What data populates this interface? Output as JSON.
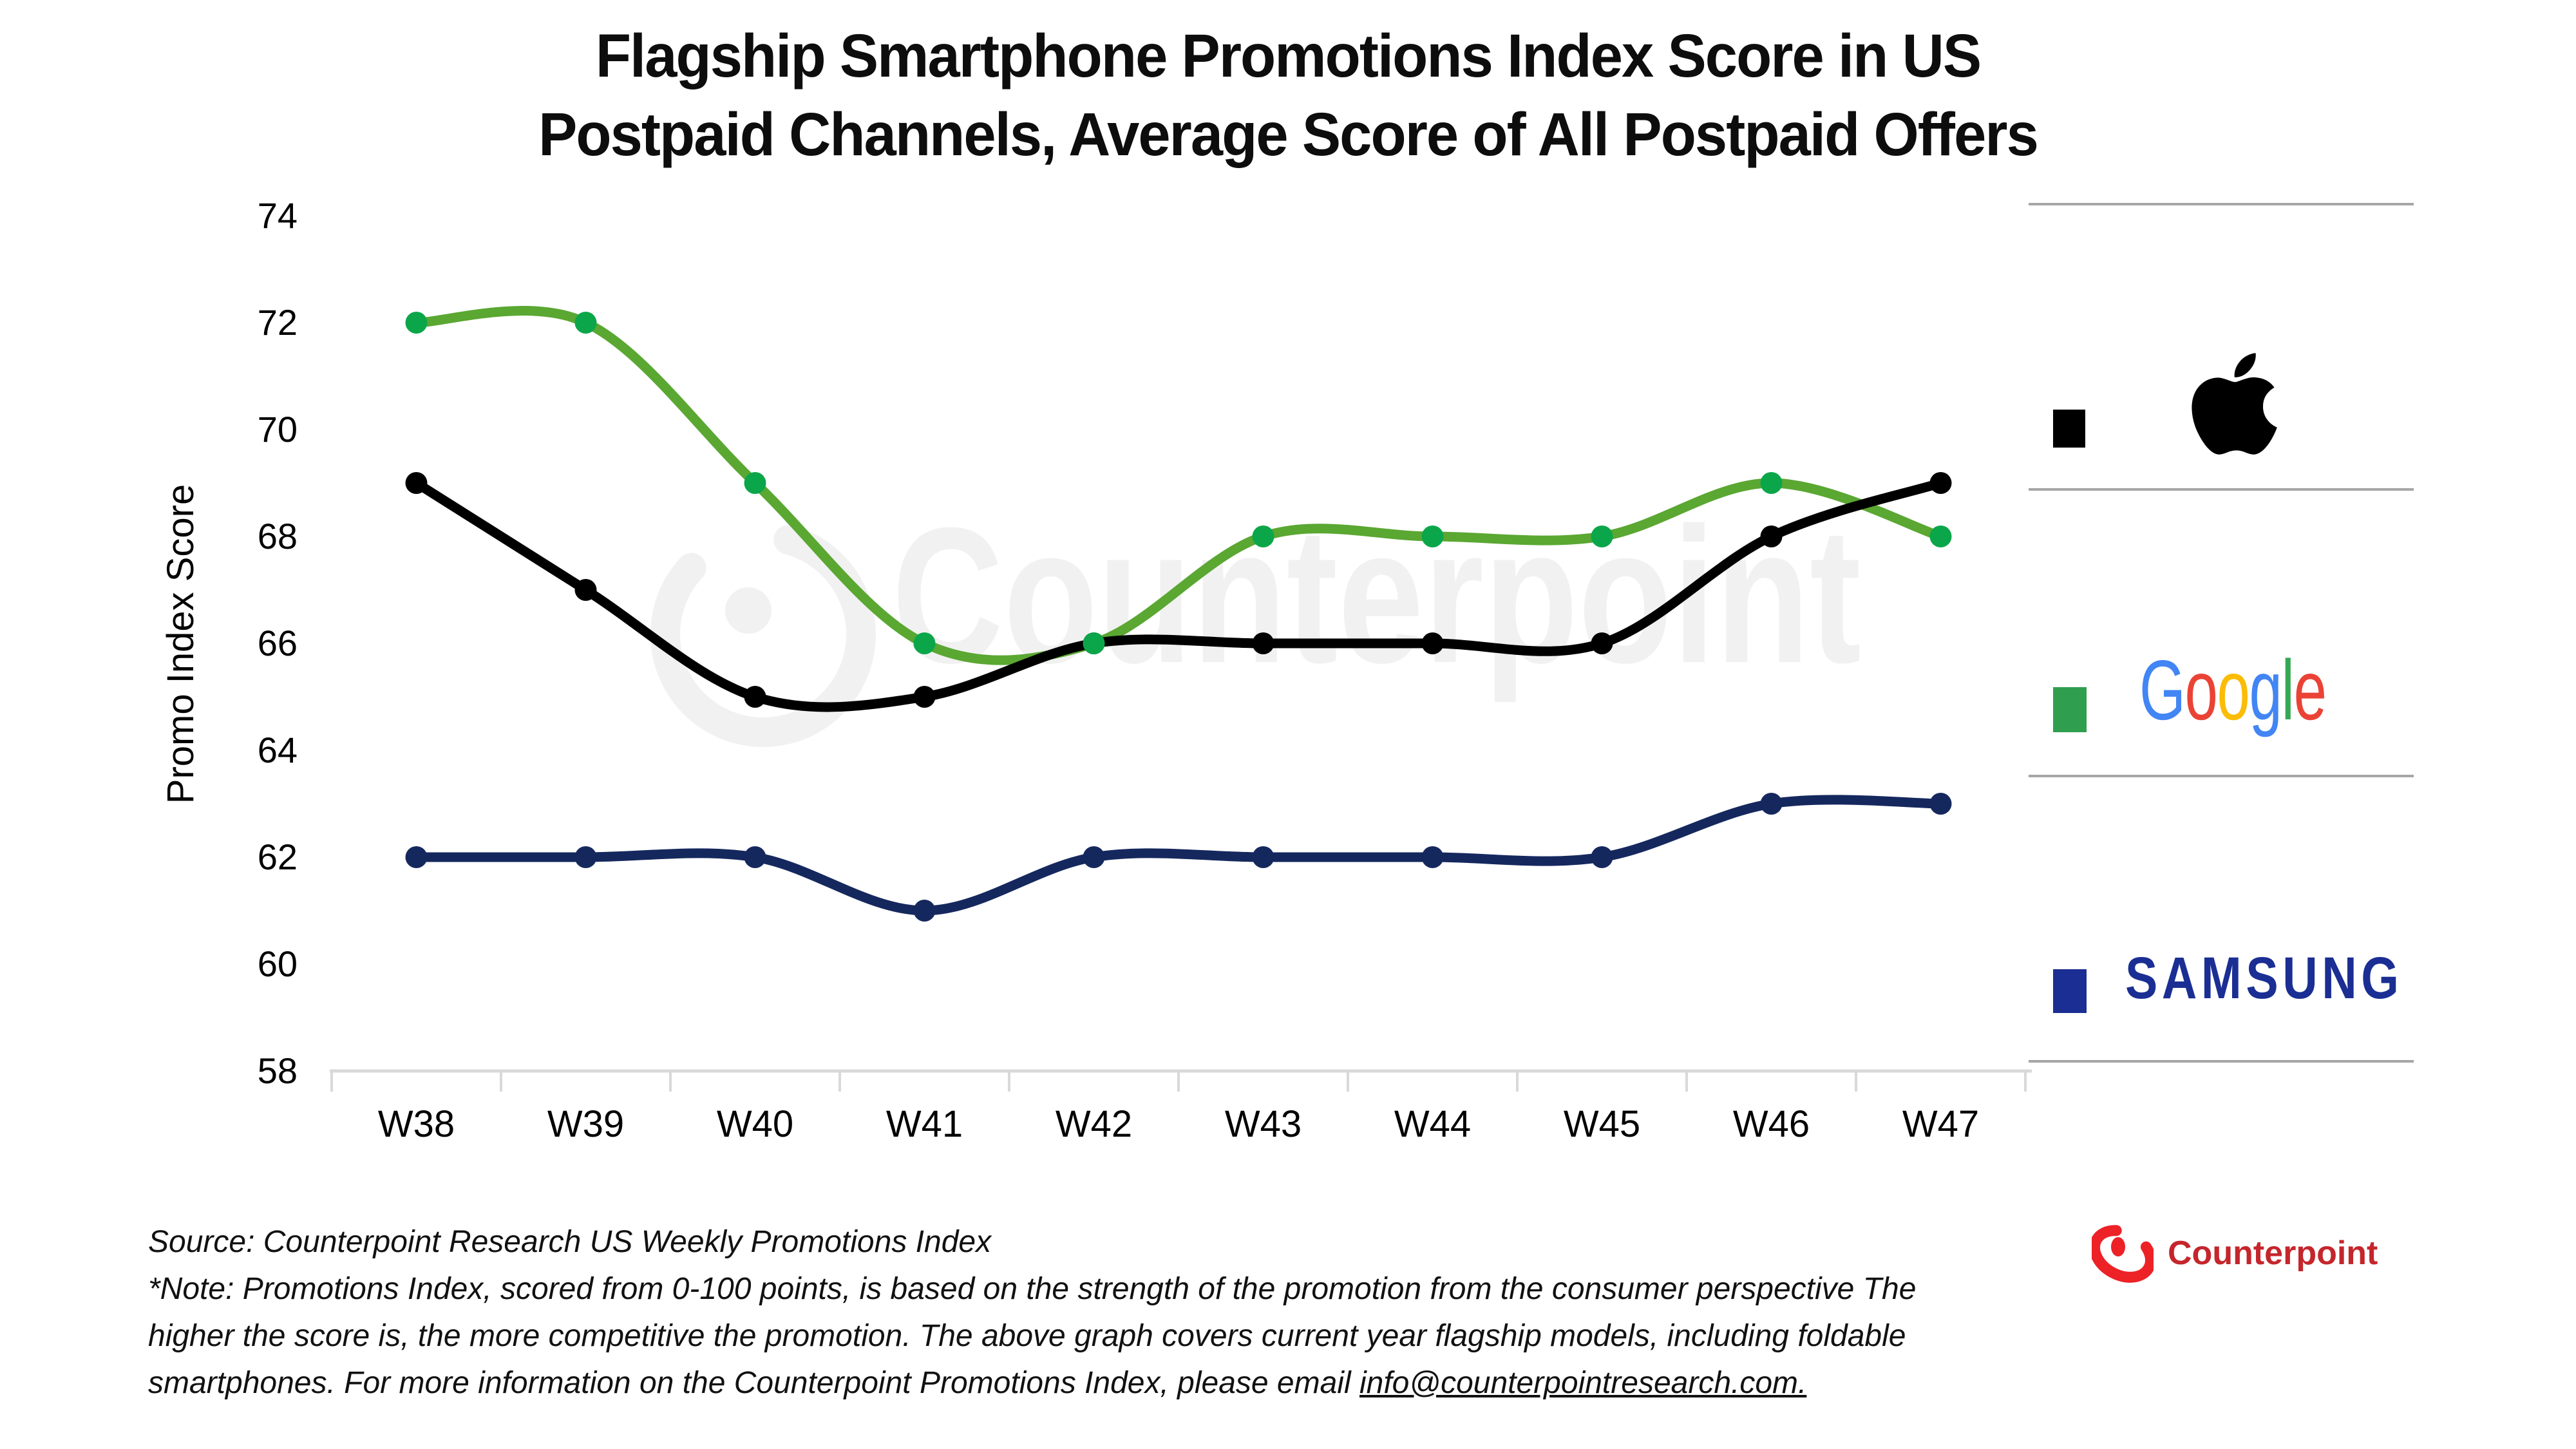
{
  "title": {
    "line1": "Flagship Smartphone Promotions Index Score in US",
    "line2": "Postpaid Channels, Average Score of All Postpaid Offers"
  },
  "chart_data": {
    "type": "line",
    "categories": [
      "W38",
      "W39",
      "W40",
      "W41",
      "W42",
      "W43",
      "W44",
      "W45",
      "W46",
      "W47"
    ],
    "series": [
      {
        "name": "Samsung",
        "line_color": "#15285E",
        "marker_color": "#15285E",
        "values": [
          62,
          62,
          62,
          61,
          62,
          62,
          62,
          62,
          63,
          63
        ]
      },
      {
        "name": "Google",
        "line_color": "#5AA732",
        "marker_color": "#0CA64A",
        "values": [
          72,
          72,
          69,
          66,
          66,
          68,
          68,
          68,
          69,
          68
        ]
      },
      {
        "name": "Apple",
        "line_color": "#000000",
        "marker_color": "#000000",
        "values": [
          69,
          67,
          65,
          65,
          66,
          66,
          66,
          66,
          68,
          69
        ]
      }
    ],
    "title": "Flagship Smartphone Promotions Index Score in US Postpaid Channels, Average Score of All Postpaid Offers",
    "xlabel": "",
    "ylabel": "Promo Index Score",
    "ylim": [
      58,
      74
    ],
    "ytick_step": 2,
    "grid": false,
    "legend_position": "right",
    "axis_color": "#D9D9D9",
    "tick_label_color": "#000000",
    "smooth": true
  },
  "legend": {
    "apple": {
      "name": "Apple",
      "swatch_color": "#000000",
      "logo": "apple-icon"
    },
    "google": {
      "name": "Google",
      "swatch_color": "#2F9E4F",
      "letters": [
        {
          "ch": "G",
          "color": "#4285F4"
        },
        {
          "ch": "o",
          "color": "#EA4335"
        },
        {
          "ch": "o",
          "color": "#FBBC05"
        },
        {
          "ch": "g",
          "color": "#4285F4"
        },
        {
          "ch": "l",
          "color": "#34A853"
        },
        {
          "ch": "e",
          "color": "#EA4335"
        }
      ]
    },
    "samsung": {
      "name": "Samsung",
      "swatch_color": "#1B2E93",
      "logo_text": "SAMSUNG",
      "logo_color": "#1B2E93"
    }
  },
  "watermark": {
    "text": "Counterpoint",
    "color": "#F1F1F1"
  },
  "source": {
    "line1": "Source: Counterpoint Research US Weekly Promotions Index",
    "note_line1": "*Note: Promotions Index, scored from 0-100 points, is based on the strength of the promotion from the consumer perspective The",
    "note_line2": "higher the score is, the more competitive the promotion. The above graph covers current year flagship models, including foldable",
    "note_line3_prefix": "smartphones. For more information on the Counterpoint Promotions Index, please email ",
    "email": "info@counterpointresearch.com."
  },
  "footer_logo": {
    "text": "Counterpoint",
    "text_color": "#C4262C",
    "mark_color": "#EC2227"
  }
}
